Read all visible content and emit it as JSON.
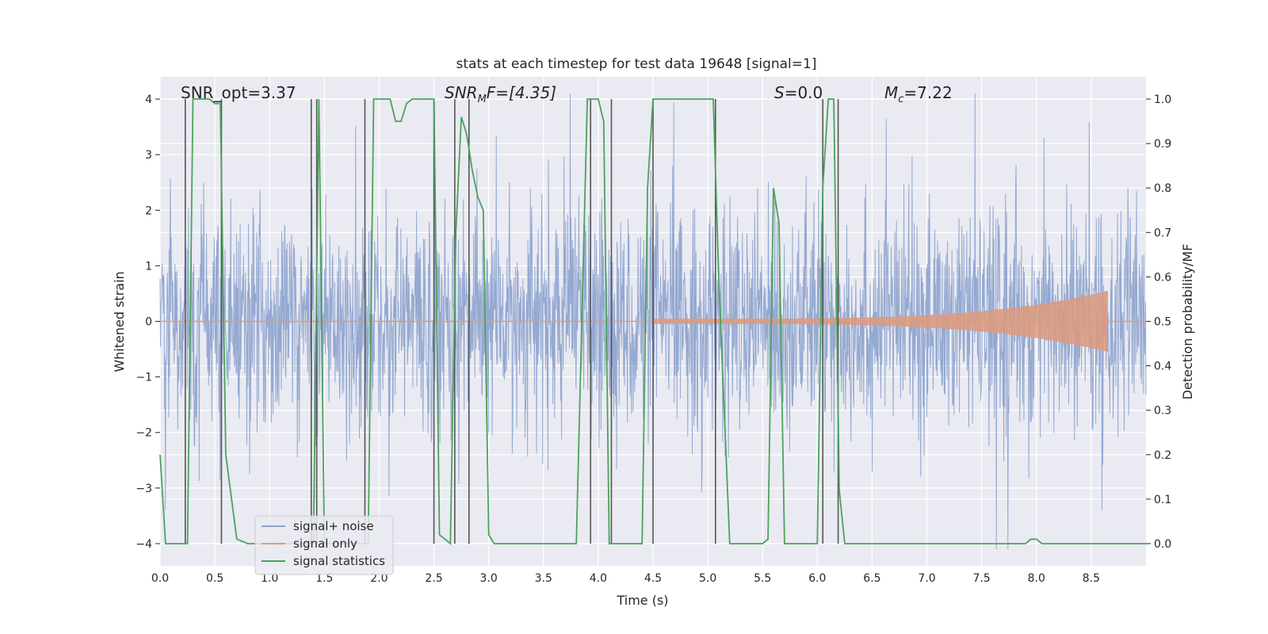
{
  "chart_data": {
    "type": "line",
    "title": "stats at each timestep for test data 19648 [signal=1]",
    "xlabel": "Time (s)",
    "ylabel": "Whitened strain",
    "y2label": "Detection probability/MF",
    "xlim": [
      0,
      9.0
    ],
    "ylim": [
      -4.4,
      4.4
    ],
    "y2lim": [
      -0.05,
      1.05
    ],
    "xticks": [
      "0.0",
      "0.5",
      "1.0",
      "1.5",
      "2.0",
      "2.5",
      "3.0",
      "3.5",
      "4.0",
      "4.5",
      "5.0",
      "5.5",
      "6.0",
      "6.5",
      "7.0",
      "7.5",
      "8.0",
      "8.5"
    ],
    "yticks": [
      "−4",
      "−3",
      "−2",
      "−1",
      "0",
      "1",
      "2",
      "3",
      "4"
    ],
    "y2ticks": [
      "0.0",
      "0.1",
      "0.2",
      "0.3",
      "0.4",
      "0.5",
      "0.6",
      "0.7",
      "0.8",
      "0.9",
      "1.0"
    ],
    "grid": true,
    "legend_position": "lower-left",
    "annotations": {
      "snr_opt": "SNR_opt=3.37",
      "snr_mf_main": "SNR",
      "snr_mf_sub": "M",
      "snr_mf_rest": "F=[4.35]",
      "s_main": "S",
      "s_rest": "=0.0",
      "mc_main": "M",
      "mc_sub": "c",
      "mc_rest": "=7.22"
    },
    "series": [
      {
        "name": "signal+ noise",
        "color": "#8fa5cf",
        "description_values": "noise-dominated whitened strain, roughly within ±2.5, spikes to ±4",
        "x_range": [
          0,
          9.0
        ]
      },
      {
        "name": "signal only",
        "color": "#dd9a7c",
        "chirp_start": 4.5,
        "chirp_end": 8.65,
        "chirp_peak_amplitude": 0.5
      },
      {
        "name": "signal statistics",
        "color": "#4aa35a",
        "axis": "right",
        "x": [
          0.0,
          0.05,
          0.1,
          0.2,
          0.25,
          0.3,
          0.35,
          0.45,
          0.5,
          0.55,
          0.6,
          0.7,
          0.8,
          0.9,
          1.0,
          1.1,
          1.2,
          1.3,
          1.35,
          1.4,
          1.45,
          1.5,
          1.6,
          1.7,
          1.8,
          1.9,
          1.95,
          2.0,
          2.1,
          2.15,
          2.2,
          2.25,
          2.3,
          2.4,
          2.45,
          2.5,
          2.55,
          2.6,
          2.65,
          2.7,
          2.75,
          2.8,
          2.85,
          2.9,
          2.95,
          3.0,
          3.05,
          3.1,
          3.2,
          3.5,
          3.8,
          3.9,
          3.95,
          4.0,
          4.05,
          4.1,
          4.15,
          4.2,
          4.25,
          4.3,
          4.4,
          4.45,
          4.5,
          4.55,
          4.6,
          4.7,
          4.9,
          5.0,
          5.05,
          5.1,
          5.15,
          5.2,
          5.3,
          5.4,
          5.5,
          5.55,
          5.6,
          5.65,
          5.7,
          5.75,
          5.8,
          5.9,
          6.0,
          6.05,
          6.1,
          6.15,
          6.2,
          6.25,
          6.3,
          6.5,
          7.0,
          7.5,
          7.9,
          7.95,
          8.0,
          8.05,
          8.5,
          9.0
        ],
        "y": [
          0.2,
          0.0,
          0.0,
          0.0,
          0.0,
          1.0,
          1.0,
          1.0,
          0.99,
          0.99,
          0.2,
          0.01,
          0.0,
          0.0,
          0.0,
          0.0,
          0.0,
          0.0,
          0.0,
          0.0,
          1.0,
          0.0,
          0.0,
          0.0,
          0.0,
          0.0,
          1.0,
          1.0,
          1.0,
          0.95,
          0.95,
          0.99,
          1.0,
          1.0,
          1.0,
          1.0,
          0.02,
          0.01,
          0.0,
          0.7,
          0.96,
          0.92,
          0.84,
          0.78,
          0.75,
          0.02,
          0.0,
          0.0,
          0.0,
          0.0,
          0.0,
          1.0,
          1.0,
          1.0,
          0.95,
          0.0,
          0.0,
          0.0,
          0.0,
          0.0,
          0.0,
          0.8,
          1.0,
          1.0,
          1.0,
          1.0,
          1.0,
          1.0,
          1.0,
          0.6,
          0.3,
          0.0,
          0.0,
          0.0,
          0.0,
          0.01,
          0.8,
          0.72,
          0.0,
          0.0,
          0.0,
          0.0,
          0.0,
          0.8,
          1.0,
          1.0,
          0.12,
          0.0,
          0.0,
          0.0,
          0.0,
          0.0,
          0.0,
          0.01,
          0.01,
          0.0,
          0.0,
          0.0
        ]
      }
    ],
    "vertical_markers": [
      0.23,
      0.56,
      1.38,
      1.43,
      1.87,
      2.5,
      2.69,
      2.82,
      3.93,
      4.12,
      4.5,
      5.07,
      6.05,
      6.19
    ]
  },
  "colors": {
    "plot_bg": "#eaeaf2",
    "grid": "#ffffff",
    "noise": "#8fa5cf",
    "signal": "#dd9a7c",
    "stat": "#4aa35a",
    "marker": "#555555"
  }
}
